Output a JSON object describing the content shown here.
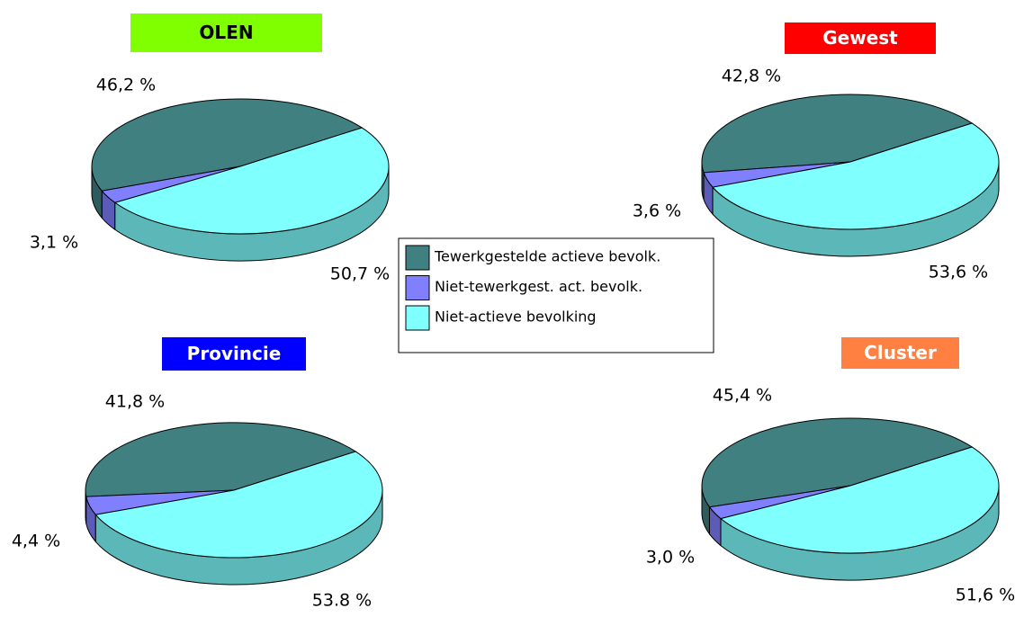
{
  "chart_data": [
    {
      "type": "pie",
      "title": "OLEN",
      "title_background": "#80ff00",
      "title_color": "#000000",
      "categories": [
        "Tewerkgestelde actieve bevolk.",
        "Niet-tewerkgest. act. bevolk.",
        "Niet-actieve bevolking"
      ],
      "values": [
        46.2,
        3.1,
        50.7
      ],
      "value_labels": [
        "46,2 %",
        "3,1 %",
        "50,7 %"
      ],
      "colors": [
        "#408080",
        "#8080ff",
        "#80ffff"
      ]
    },
    {
      "type": "pie",
      "title": "Gewest",
      "title_background": "#ff0000",
      "title_color": "#ffffff",
      "categories": [
        "Tewerkgestelde actieve bevolk.",
        "Niet-tewerkgest. act. bevolk.",
        "Niet-actieve bevolking"
      ],
      "values": [
        42.8,
        3.6,
        53.6
      ],
      "value_labels": [
        "42,8 %",
        "3,6 %",
        "53,6 %"
      ],
      "colors": [
        "#408080",
        "#8080ff",
        "#80ffff"
      ]
    },
    {
      "type": "pie",
      "title": "Provincie",
      "title_background": "#0000ff",
      "title_color": "#ffffff",
      "categories": [
        "Tewerkgestelde actieve bevolk.",
        "Niet-tewerkgest. act. bevolk.",
        "Niet-actieve bevolking"
      ],
      "values": [
        41.8,
        4.4,
        53.8
      ],
      "value_labels": [
        "41,8 %",
        "4,4 %",
        "53.8 %"
      ],
      "colors": [
        "#408080",
        "#8080ff",
        "#80ffff"
      ]
    },
    {
      "type": "pie",
      "title": "Cluster",
      "title_background": "#ff8040",
      "title_color": "#ffffff",
      "categories": [
        "Tewerkgestelde actieve bevolk.",
        "Niet-tewerkgest. act. bevolk.",
        "Niet-actieve bevolking"
      ],
      "values": [
        45.4,
        3.0,
        51.6
      ],
      "value_labels": [
        "45,4 %",
        "3,0 %",
        "51,6 %"
      ],
      "colors": [
        "#408080",
        "#8080ff",
        "#80ffff"
      ]
    }
  ]
}
